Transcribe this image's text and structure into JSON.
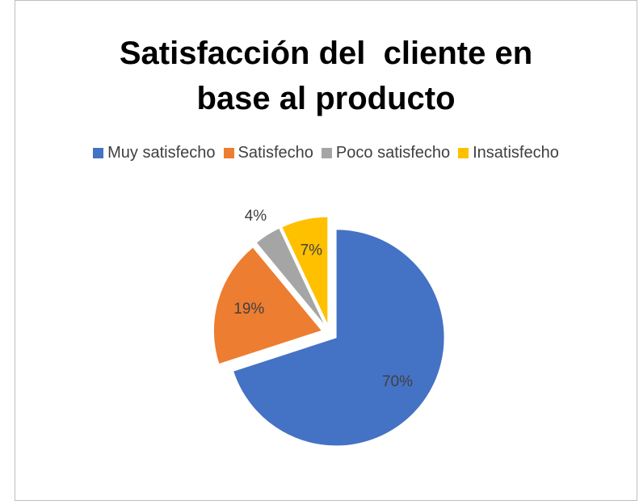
{
  "chart_data": {
    "type": "pie",
    "title": "Satisfacción del  cliente en base al producto",
    "categories": [
      "Muy satisfecho",
      "Satisfecho",
      "Poco satisfecho",
      "Insatisfecho"
    ],
    "values": [
      70,
      19,
      4,
      7
    ],
    "value_labels": [
      "70%",
      "19%",
      "4%",
      "7%"
    ],
    "colors": [
      "#4472c4",
      "#ed7d31",
      "#a5a5a5",
      "#ffc000"
    ],
    "legend": "top"
  }
}
